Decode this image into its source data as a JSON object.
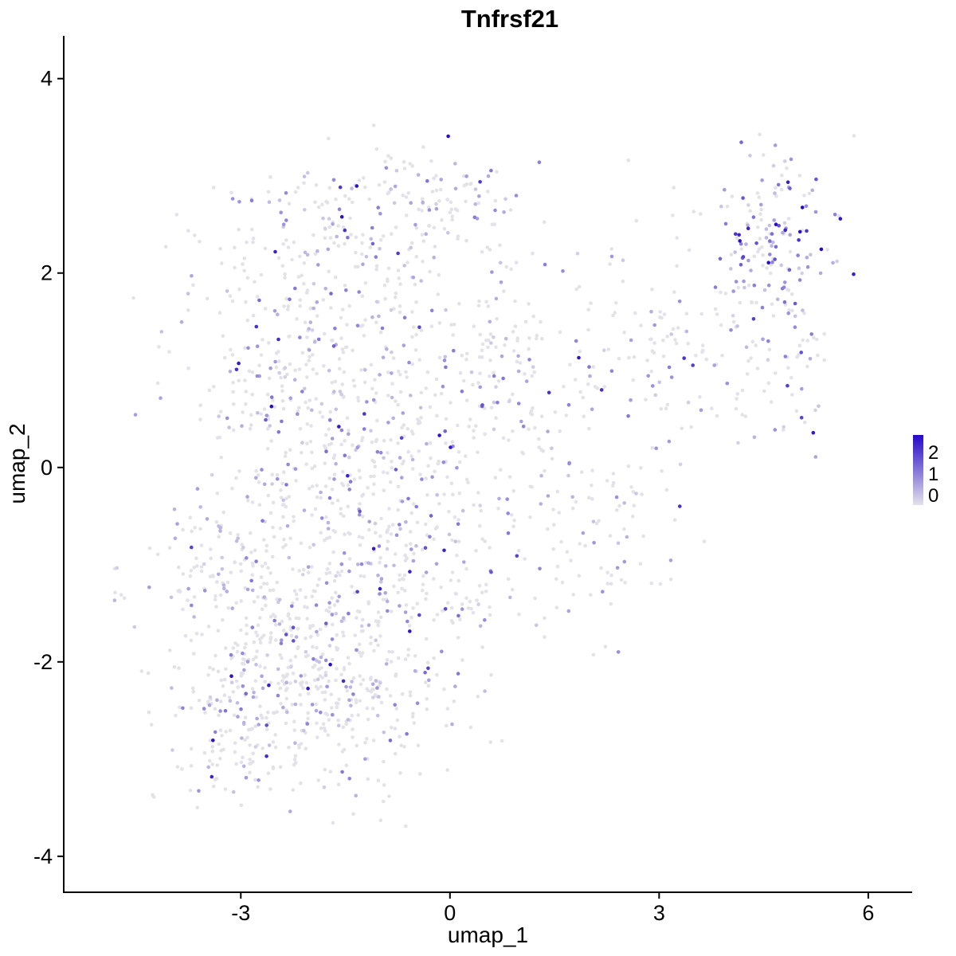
{
  "chart_data": {
    "type": "scatter",
    "title": "Tnfrsf21",
    "xlabel": "umap_1",
    "ylabel": "umap_2",
    "xlim": [
      -5.54,
      6.63
    ],
    "ylim": [
      -4.37,
      4.44
    ],
    "xticks": [
      -3,
      0,
      3,
      6
    ],
    "yticks": [
      -4,
      -2,
      0,
      2,
      4
    ],
    "grid": false,
    "point_radius": 2.3,
    "legend": {
      "position": "right",
      "labels": [
        "2",
        "1",
        "0"
      ],
      "color_low": "#E3E2E9",
      "color_high": "#2408C8",
      "value_range": [
        0,
        2
      ]
    },
    "clusters": [
      {
        "cx": -2.6,
        "cy": -2.4,
        "sx": 0.75,
        "sy": 0.55,
        "n": 350,
        "expr": [
          0.72,
          0.25,
          0.03
        ]
      },
      {
        "cx": -1.2,
        "cy": -2.0,
        "sx": 0.8,
        "sy": 0.6,
        "n": 220,
        "expr": [
          0.72,
          0.25,
          0.03
        ]
      },
      {
        "cx": -3.1,
        "cy": -1.2,
        "sx": 0.6,
        "sy": 0.5,
        "n": 130,
        "expr": [
          0.7,
          0.27,
          0.03
        ]
      },
      {
        "cx": -1.8,
        "cy": -0.3,
        "sx": 0.9,
        "sy": 0.7,
        "n": 240,
        "expr": [
          0.7,
          0.27,
          0.03
        ]
      },
      {
        "cx": -0.4,
        "cy": -0.9,
        "sx": 0.8,
        "sy": 0.7,
        "n": 170,
        "expr": [
          0.72,
          0.25,
          0.03
        ]
      },
      {
        "cx": -2.3,
        "cy": 1.2,
        "sx": 0.8,
        "sy": 0.6,
        "n": 190,
        "expr": [
          0.68,
          0.28,
          0.04
        ]
      },
      {
        "cx": -1.0,
        "cy": 0.8,
        "sx": 0.8,
        "sy": 0.6,
        "n": 150,
        "expr": [
          0.7,
          0.27,
          0.03
        ]
      },
      {
        "cx": -1.4,
        "cy": 2.4,
        "sx": 0.9,
        "sy": 0.4,
        "n": 170,
        "expr": [
          0.66,
          0.29,
          0.05
        ]
      },
      {
        "cx": -0.2,
        "cy": 2.8,
        "sx": 0.6,
        "sy": 0.25,
        "n": 70,
        "expr": [
          0.66,
          0.29,
          0.05
        ]
      },
      {
        "cx": 0.6,
        "cy": 1.2,
        "sx": 0.7,
        "sy": 0.7,
        "n": 110,
        "expr": [
          0.72,
          0.25,
          0.03
        ]
      },
      {
        "cx": 1.5,
        "cy": 0.2,
        "sx": 0.8,
        "sy": 0.8,
        "n": 95,
        "expr": [
          0.75,
          0.23,
          0.02
        ]
      },
      {
        "cx": 2.2,
        "cy": -1.0,
        "sx": 0.6,
        "sy": 0.5,
        "n": 55,
        "expr": [
          0.8,
          0.18,
          0.02
        ]
      },
      {
        "cx": 3.3,
        "cy": 1.2,
        "sx": 0.7,
        "sy": 0.7,
        "n": 120,
        "expr": [
          0.68,
          0.27,
          0.05
        ]
      },
      {
        "cx": 4.6,
        "cy": 2.3,
        "sx": 0.45,
        "sy": 0.45,
        "n": 150,
        "expr": [
          0.45,
          0.38,
          0.17
        ]
      },
      {
        "cx": 4.9,
        "cy": 1.0,
        "sx": 0.35,
        "sy": 0.5,
        "n": 50,
        "expr": [
          0.6,
          0.3,
          0.1
        ]
      },
      {
        "cx": -4.75,
        "cy": -1.25,
        "sx": 0.07,
        "sy": 0.18,
        "n": 6,
        "expr": [
          0.7,
          0.3,
          0.0
        ]
      }
    ]
  }
}
